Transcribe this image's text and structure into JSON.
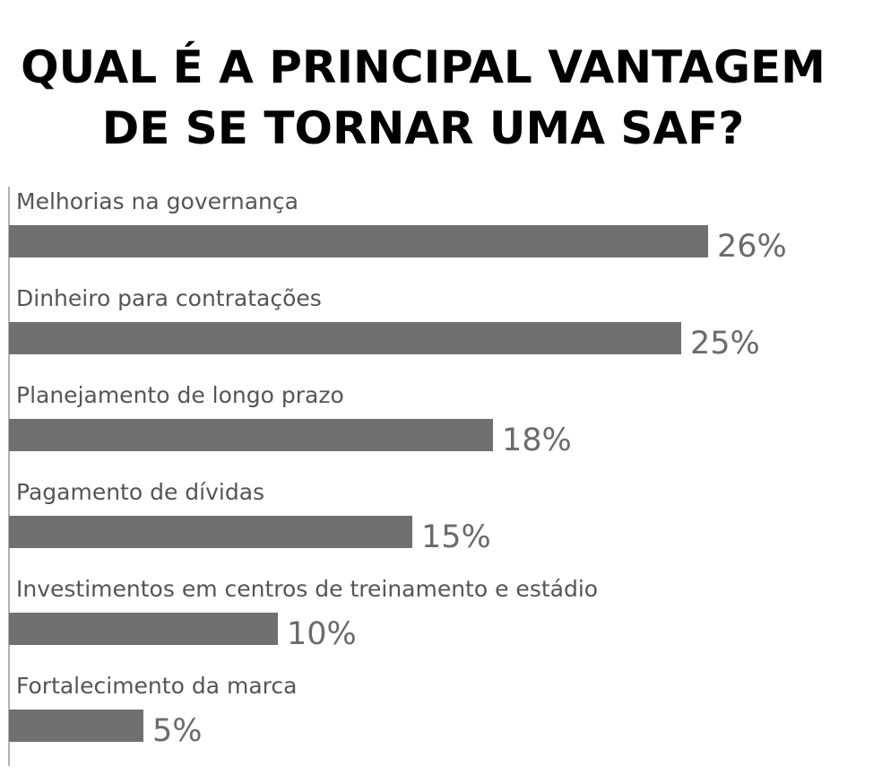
{
  "chart_data": {
    "type": "bar",
    "orientation": "horizontal",
    "title": [
      "QUAL É A PRINCIPAL VANTAGEM",
      "DE SE TORNAR UMA SAF?"
    ],
    "categories": [
      "Melhorias na governança",
      "Dinheiro para contratações",
      "Planejamento de longo prazo",
      "Pagamento de dívidas",
      "Investimentos em centros de treinamento e estádio",
      "Fortalecimento da marca"
    ],
    "values": [
      26,
      25,
      18,
      15,
      10,
      5
    ],
    "value_labels": [
      "26%",
      "25%",
      "18%",
      "15%",
      "10%",
      "5%"
    ],
    "unit": "%",
    "xlim": [
      0,
      26
    ],
    "grid": false,
    "legend": "none"
  },
  "colors": {
    "bar": "#707070",
    "title": "#000000",
    "category_label": "#555555",
    "value_label": "#6b6b6b",
    "axis_line": "#9a9a9a"
  }
}
